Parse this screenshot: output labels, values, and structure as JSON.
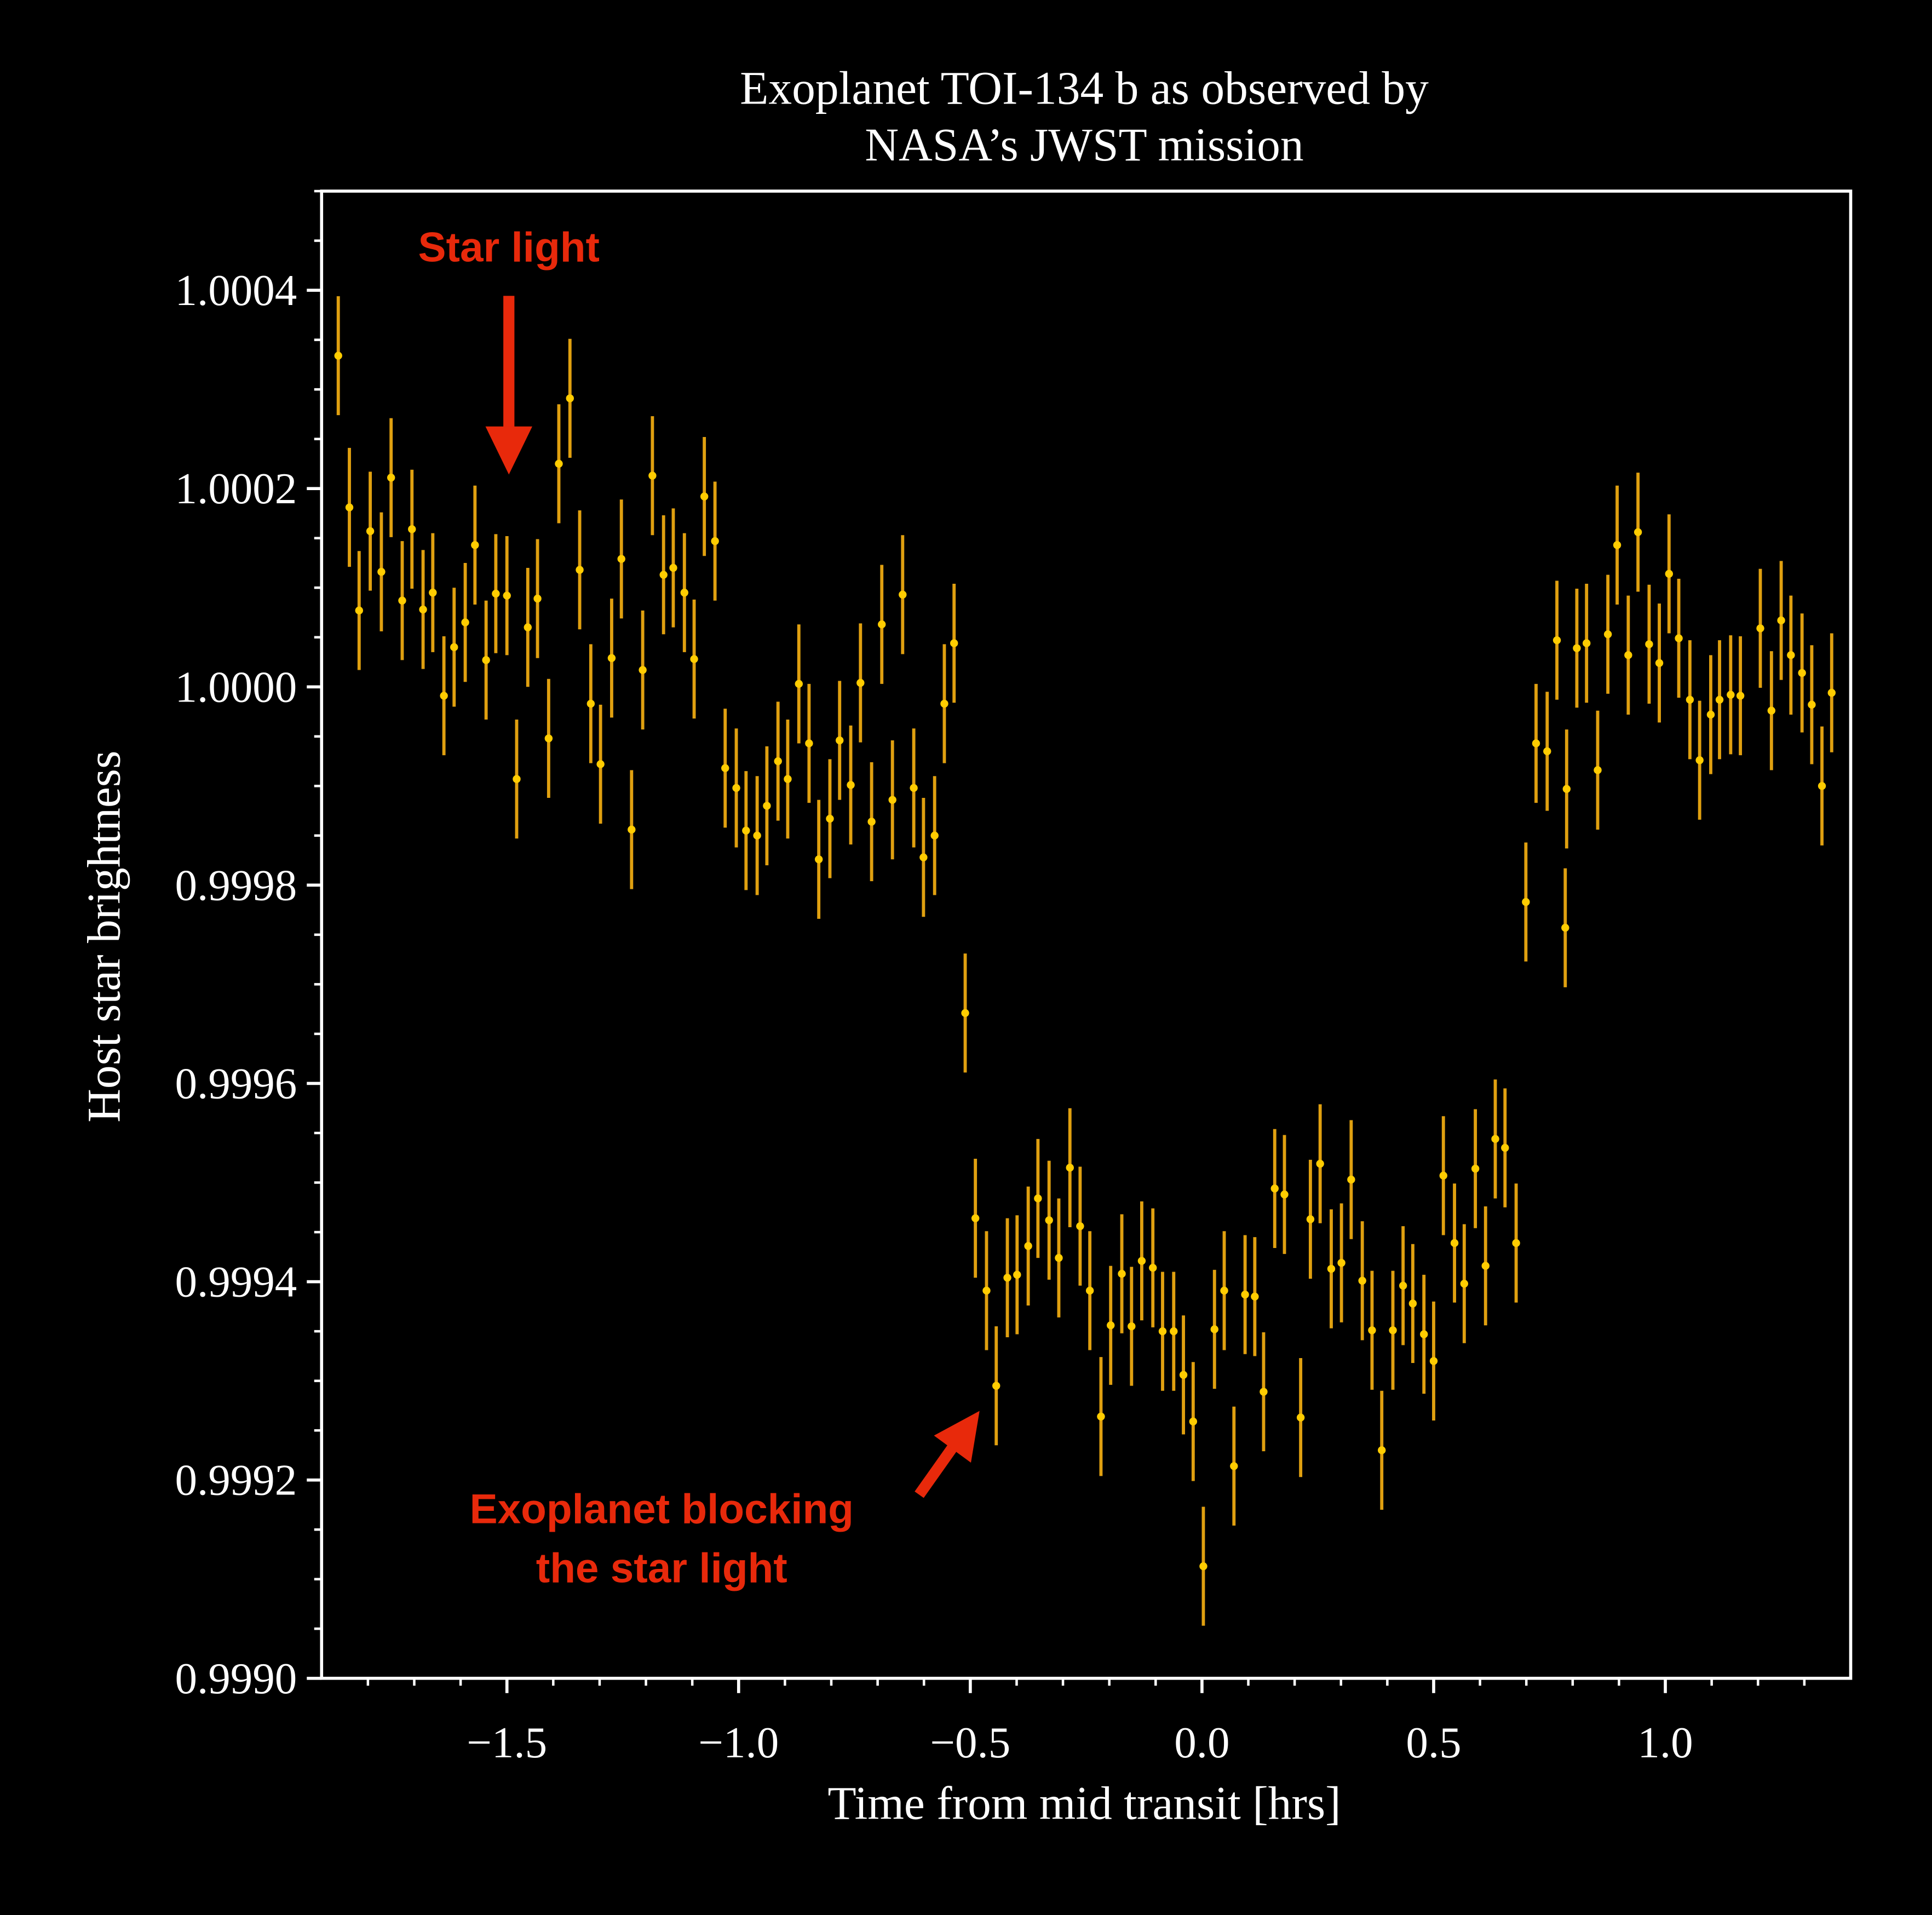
{
  "chart_data": {
    "type": "scatter",
    "title": [
      "Exoplanet TOI-134 b as observed by",
      "NASA’s JWST mission"
    ],
    "x_label": "Time from mid transit [hrs]",
    "y_label": "Host star brightness",
    "color": "#ffcc00",
    "ecolor": "#e0a010",
    "annotation_color": "#e8290b",
    "annotations": [
      {
        "text": [
          "Star light"
        ]
      },
      {
        "text": [
          "Exoplanet blocking",
          "the star light"
        ]
      }
    ],
    "xlim": [
      -1.9,
      1.4
    ],
    "ylim": [
      0.999,
      1.0005
    ],
    "xticks": [
      {
        "value": -1.5,
        "label": "−1.5"
      },
      {
        "value": -1.0,
        "label": "−1.0"
      },
      {
        "value": -0.5,
        "label": "−0.5"
      },
      {
        "value": 0,
        "label": "0.0"
      },
      0.5,
      {
        "value": 1,
        "label": "1.0"
      }
    ],
    "yticks": [
      {
        "value": 0.999,
        "label": "0.9990"
      },
      0.9992,
      0.9994,
      0.9996,
      0.9998,
      {
        "value": 1,
        "label": "1.0000"
      },
      1.0002,
      1.0004
    ],
    "xminorticks": [
      -1.8,
      -1.7,
      -1.6,
      -1.4,
      -1.3,
      -1.2,
      -1.1,
      -0.9,
      -0.8,
      -0.7,
      -0.6,
      -0.4,
      -0.3,
      -0.2,
      -0.1,
      0.1,
      0.2,
      0.3,
      0.4,
      0.6,
      0.7,
      0.8,
      0.9,
      1.1,
      1.2,
      1.3
    ],
    "yminorticks": [
      0.99905,
      0.9991,
      0.99915,
      0.99925,
      0.9993,
      0.99935,
      0.99945,
      0.9995,
      0.99955,
      0.99965,
      0.9997,
      0.99975,
      0.99985,
      0.9999,
      0.99995,
      1.00005,
      1.0001,
      1.00015,
      1.00025,
      1.0003,
      1.00035,
      1.00045,
      1.0005
    ],
    "yerr": 6e-05,
    "x": [
      -1.864,
      -1.84,
      -1.819,
      -1.795,
      -1.771,
      -1.75,
      -1.726,
      -1.705,
      -1.681,
      -1.66,
      -1.636,
      -1.614,
      -1.59,
      -1.569,
      -1.545,
      -1.524,
      -1.5,
      -1.479,
      -1.455,
      -1.434,
      -1.41,
      -1.388,
      -1.364,
      -1.343,
      -1.319,
      -1.298,
      -1.274,
      -1.253,
      -1.231,
      -1.207,
      -1.186,
      -1.162,
      -1.141,
      -1.117,
      -1.096,
      -1.074,
      -1.051,
      -1.029,
      -1.005,
      -0.984,
      -0.96,
      -0.939,
      -0.915,
      -0.894,
      -0.87,
      -0.848,
      -0.827,
      -0.803,
      -0.782,
      -0.758,
      -0.737,
      -0.713,
      -0.691,
      -0.668,
      -0.646,
      -0.622,
      -0.601,
      -0.577,
      -0.556,
      -0.535,
      -0.511,
      -0.489,
      -0.465,
      -0.444,
      -0.42,
      -0.399,
      -0.375,
      -0.354,
      -0.33,
      -0.309,
      -0.285,
      -0.263,
      -0.242,
      -0.218,
      -0.197,
      -0.173,
      -0.152,
      -0.13,
      -0.106,
      -0.085,
      -0.061,
      -0.04,
      -0.019,
      0.003,
      0.027,
      0.048,
      0.069,
      0.093,
      0.114,
      0.133,
      0.157,
      0.178,
      0.213,
      0.234,
      0.255,
      0.279,
      0.301,
      0.322,
      0.346,
      0.367,
      0.388,
      0.412,
      0.434,
      0.455,
      0.479,
      0.5,
      0.521,
      0.545,
      0.566,
      0.59,
      0.612,
      0.633,
      0.654,
      0.678,
      0.699,
      0.721,
      0.745,
      0.766,
      0.784,
      0.787,
      0.809,
      0.83,
      0.854,
      0.876,
      0.896,
      0.92,
      0.941,
      0.965,
      0.987,
      1.008,
      1.029,
      1.053,
      1.074,
      1.098,
      1.117,
      1.141,
      1.162,
      1.205,
      1.229,
      1.25,
      1.271,
      1.295,
      1.316,
      1.338,
      1.359
    ],
    "values": [
      1.000334,
      1.000181,
      1.000077,
      1.000157,
      1.000116,
      1.000211,
      1.000087,
      1.000159,
      1.000078,
      1.000095,
      0.999991,
      1.00004,
      1.000065,
      1.000143,
      1.000027,
      1.000094,
      1.000092,
      0.999907,
      1.00006,
      1.000089,
      0.999948,
      1.000225,
      1.000291,
      1.000118,
      0.999983,
      0.999922,
      1.000029,
      1.000129,
      0.999856,
      1.000017,
      1.000213,
      1.000113,
      1.00012,
      1.000095,
      1.000028,
      1.000192,
      1.000147,
      0.999918,
      0.999898,
      0.999855,
      0.99985,
      0.99988,
      0.999925,
      0.999907,
      1.000003,
      0.999943,
      0.999826,
      0.999867,
      0.999946,
      0.999901,
      1.000004,
      0.999864,
      1.000063,
      0.999886,
      1.000093,
      0.999898,
      0.999828,
      0.99985,
      0.999983,
      1.000044,
      0.999671,
      0.999464,
      0.999391,
      0.999295,
      0.999404,
      0.999407,
      0.999436,
      0.999484,
      0.999462,
      0.999424,
      0.999515,
      0.999456,
      0.999391,
      0.999264,
      0.999356,
      0.999408,
      0.999355,
      0.999421,
      0.999414,
      0.99935,
      0.99935,
      0.999306,
      0.999259,
      0.999113,
      0.999352,
      0.999391,
      0.999214,
      0.999387,
      0.999385,
      0.999289,
      0.999494,
      0.999488,
      0.999263,
      0.999463,
      0.999519,
      0.999413,
      0.999419,
      0.999503,
      0.999401,
      0.999351,
      0.99923,
      0.999351,
      0.999396,
      0.999378,
      0.999347,
      0.99932,
      0.999507,
      0.999439,
      0.999398,
      0.999514,
      0.999416,
      0.999544,
      0.999535,
      0.999439,
      0.999783,
      0.999943,
      0.999935,
      1.000047,
      0.999757,
      0.999897,
      1.000039,
      1.000044,
      0.999916,
      1.000053,
      1.000143,
      1.000032,
      1.000156,
      1.000043,
      1.000024,
      1.000114,
      1.000049,
      0.999987,
      0.999926,
      0.999972,
      0.999987,
      0.999992,
      0.999991,
      1.000059,
      0.999976,
      1.000067,
      1.000032,
      1.000014,
      0.999982,
      0.9999,
      0.999994
    ]
  }
}
